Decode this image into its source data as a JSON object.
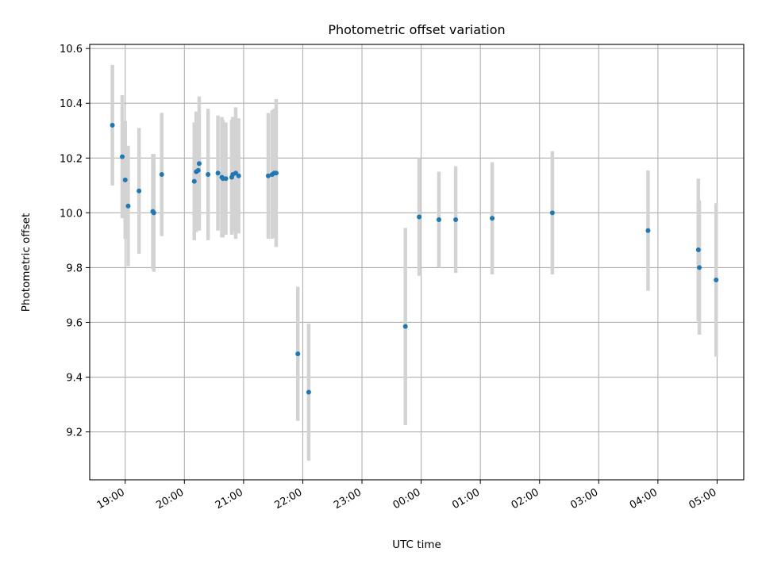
{
  "chart_data": {
    "type": "scatter",
    "title": "Photometric offset variation",
    "xlabel": "UTC time",
    "ylabel": "Photometric offset",
    "x_ticks": [
      "19:00",
      "20:00",
      "21:00",
      "22:00",
      "23:00",
      "00:00",
      "01:00",
      "02:00",
      "03:00",
      "04:00",
      "05:00"
    ],
    "y_ticks": [
      "9.2",
      "9.4",
      "9.6",
      "9.8",
      "10.0",
      "10.2",
      "10.4",
      "10.6"
    ],
    "x_hour_range": [
      18.4,
      29.45
    ],
    "ylim": [
      9.025,
      10.615
    ],
    "grid": true,
    "marker_color": "#1f77b4",
    "errorbar_color": "#d3d3d3",
    "points": [
      {
        "t": "18:47",
        "y": 10.32,
        "err": 0.22
      },
      {
        "t": "18:57",
        "y": 10.205,
        "err": 0.225
      },
      {
        "t": "19:00",
        "y": 10.12,
        "err": 0.215
      },
      {
        "t": "19:03",
        "y": 10.025,
        "err": 0.22
      },
      {
        "t": "19:14",
        "y": 10.08,
        "err": 0.23
      },
      {
        "t": "19:28",
        "y": 10.005,
        "err": 0.21
      },
      {
        "t": "19:29",
        "y": 10.0,
        "err": 0.215
      },
      {
        "t": "19:37",
        "y": 10.14,
        "err": 0.225
      },
      {
        "t": "20:10",
        "y": 10.115,
        "err": 0.215
      },
      {
        "t": "20:12",
        "y": 10.15,
        "err": 0.22
      },
      {
        "t": "20:14",
        "y": 10.155,
        "err": 0.21
      },
      {
        "t": "20:15",
        "y": 10.18,
        "err": 0.245
      },
      {
        "t": "20:24",
        "y": 10.14,
        "err": 0.24
      },
      {
        "t": "20:34",
        "y": 10.145,
        "err": 0.21
      },
      {
        "t": "20:38",
        "y": 10.13,
        "err": 0.22
      },
      {
        "t": "20:39",
        "y": 10.125,
        "err": 0.215
      },
      {
        "t": "20:42",
        "y": 10.125,
        "err": 0.205
      },
      {
        "t": "20:48",
        "y": 10.13,
        "err": 0.21
      },
      {
        "t": "20:49",
        "y": 10.14,
        "err": 0.21
      },
      {
        "t": "20:52",
        "y": 10.145,
        "err": 0.24
      },
      {
        "t": "20:55",
        "y": 10.135,
        "err": 0.21
      },
      {
        "t": "21:25",
        "y": 10.135,
        "err": 0.23
      },
      {
        "t": "21:29",
        "y": 10.14,
        "err": 0.235
      },
      {
        "t": "21:31",
        "y": 10.145,
        "err": 0.235
      },
      {
        "t": "21:33",
        "y": 10.145,
        "err": 0.27
      },
      {
        "t": "21:55",
        "y": 9.485,
        "err": 0.245
      },
      {
        "t": "22:06",
        "y": 9.345,
        "err": 0.25
      },
      {
        "t": "23:44",
        "y": 9.585,
        "err": 0.36
      },
      {
        "t": "23:58",
        "y": 9.985,
        "err": 0.215
      },
      {
        "t": "00:18",
        "y": 9.975,
        "err": 0.175
      },
      {
        "t": "00:35",
        "y": 9.975,
        "err": 0.195
      },
      {
        "t": "01:12",
        "y": 9.98,
        "err": 0.205
      },
      {
        "t": "02:13",
        "y": 10.0,
        "err": 0.225
      },
      {
        "t": "03:50",
        "y": 9.935,
        "err": 0.22
      },
      {
        "t": "04:41",
        "y": 9.865,
        "err": 0.26
      },
      {
        "t": "04:42",
        "y": 9.8,
        "err": 0.245
      },
      {
        "t": "04:59",
        "y": 9.755,
        "err": 0.28
      }
    ]
  }
}
